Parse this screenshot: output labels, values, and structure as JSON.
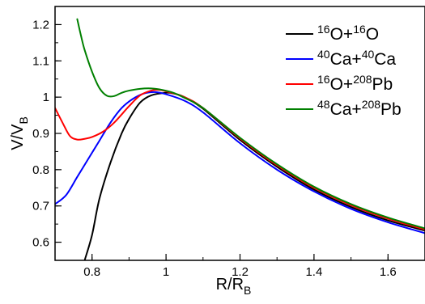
{
  "chart_data": {
    "type": "line",
    "xlabel": "R/R",
    "xlabel_sub": "B",
    "ylabel": "V/V",
    "ylabel_sub": "B",
    "xlim": [
      0.7,
      1.7
    ],
    "ylim": [
      0.55,
      1.25
    ],
    "xticks": [
      0.8,
      1.0,
      1.2,
      1.4,
      1.6
    ],
    "xtick_labels": [
      "0.8",
      "1",
      "1.2",
      "1.4",
      "1.6"
    ],
    "yticks": [
      0.6,
      0.7,
      0.8,
      0.9,
      1.0,
      1.1,
      1.2
    ],
    "ytick_labels": [
      "0.6",
      "0.7",
      "0.8",
      "0.9",
      "1",
      "1.1",
      "1.2"
    ],
    "grid": false,
    "legend_position": "top-right",
    "series": [
      {
        "name": "16O+16O",
        "legend": [
          {
            "sup": "16"
          },
          {
            "t": "O+"
          },
          {
            "sup": "16"
          },
          {
            "t": "O"
          }
        ],
        "color": "#000000",
        "x": [
          0.78,
          0.8,
          0.82,
          0.85,
          0.88,
          0.9,
          0.93,
          0.96,
          1.0,
          1.02,
          1.05,
          1.1,
          1.2,
          1.3,
          1.4,
          1.5,
          1.6,
          1.7
        ],
        "y": [
          0.55,
          0.62,
          0.72,
          0.82,
          0.9,
          0.94,
          0.985,
          1.005,
          1.012,
          1.01,
          1.0,
          0.968,
          0.882,
          0.808,
          0.745,
          0.697,
          0.66,
          0.632
        ]
      },
      {
        "name": "40Ca+40Ca",
        "legend": [
          {
            "sup": "40"
          },
          {
            "t": "Ca+"
          },
          {
            "sup": "40"
          },
          {
            "t": "Ca"
          }
        ],
        "color": "#0000ff",
        "x": [
          0.7,
          0.73,
          0.76,
          0.79,
          0.82,
          0.85,
          0.88,
          0.91,
          0.94,
          0.97,
          1.0,
          1.05,
          1.1,
          1.2,
          1.3,
          1.4,
          1.5,
          1.6,
          1.7
        ],
        "y": [
          0.705,
          0.73,
          0.78,
          0.83,
          0.88,
          0.93,
          0.97,
          0.995,
          1.01,
          1.014,
          1.008,
          0.99,
          0.958,
          0.873,
          0.8,
          0.74,
          0.692,
          0.655,
          0.625
        ]
      },
      {
        "name": "16O+208Pb",
        "legend": [
          {
            "sup": "16"
          },
          {
            "t": "O+"
          },
          {
            "sup": "208"
          },
          {
            "t": "Pb"
          }
        ],
        "color": "#ff0000",
        "x": [
          0.7,
          0.72,
          0.74,
          0.76,
          0.78,
          0.8,
          0.83,
          0.86,
          0.9,
          0.93,
          0.96,
          0.98,
          1.0,
          1.05,
          1.1,
          1.2,
          1.3,
          1.4,
          1.5,
          1.6,
          1.7
        ],
        "y": [
          0.97,
          0.93,
          0.893,
          0.883,
          0.885,
          0.89,
          0.905,
          0.93,
          0.975,
          1.005,
          1.018,
          1.02,
          1.016,
          1.0,
          0.97,
          0.886,
          0.812,
          0.75,
          0.702,
          0.665,
          0.635
        ]
      },
      {
        "name": "48Ca+208Pb",
        "legend": [
          {
            "sup": "48"
          },
          {
            "t": "Ca+"
          },
          {
            "sup": "208"
          },
          {
            "t": "Pb"
          }
        ],
        "color": "#008000",
        "x": [
          0.76,
          0.77,
          0.78,
          0.8,
          0.82,
          0.84,
          0.86,
          0.88,
          0.9,
          0.93,
          0.96,
          0.99,
          1.02,
          1.05,
          1.1,
          1.2,
          1.3,
          1.4,
          1.5,
          1.6,
          1.7
        ],
        "y": [
          1.215,
          1.17,
          1.13,
          1.07,
          1.025,
          1.004,
          1.003,
          1.012,
          1.018,
          1.023,
          1.024,
          1.02,
          1.012,
          0.998,
          0.97,
          0.888,
          0.815,
          0.753,
          0.705,
          0.668,
          0.638
        ]
      }
    ]
  }
}
